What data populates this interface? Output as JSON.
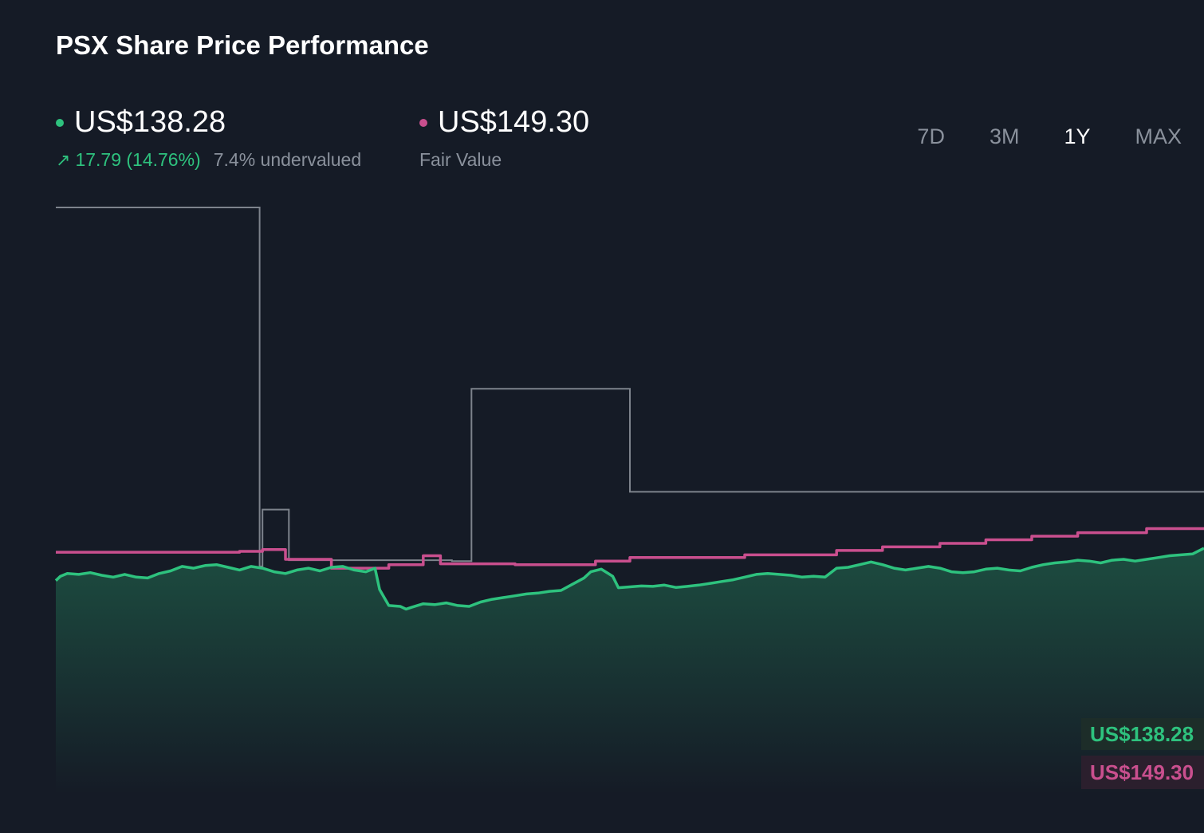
{
  "header": {
    "title": "PSX Share Price Performance"
  },
  "price": {
    "value": "US$138.28",
    "change": "17.79 (14.76%)",
    "valuation": "7.4% undervalued"
  },
  "fair_value": {
    "value": "US$149.30",
    "label": "Fair Value"
  },
  "tabs": [
    {
      "label": "7D",
      "active": false
    },
    {
      "label": "3M",
      "active": false
    },
    {
      "label": "1Y",
      "active": true
    },
    {
      "label": "MAX",
      "active": false
    }
  ],
  "colors": {
    "price": "#2ec27e",
    "fair_value": "#c94f8e",
    "history": "#7d838c",
    "background": "#151b26"
  },
  "chart_data": {
    "type": "line",
    "price_label": "US$138.28",
    "fair_value_label": "US$149.30",
    "ylim": [
      0,
      330
    ],
    "x_range": [
      0,
      100
    ],
    "series": [
      {
        "values": [
          [
            0,
            120
          ],
          [
            0.4,
            122.5
          ],
          [
            1,
            124
          ],
          [
            2,
            123.5
          ],
          [
            3,
            124.5
          ],
          [
            4,
            123
          ],
          [
            5,
            122
          ],
          [
            6,
            123.5
          ],
          [
            7,
            122
          ],
          [
            8,
            121.5
          ],
          [
            9,
            124
          ],
          [
            10,
            125.5
          ],
          [
            11,
            128
          ],
          [
            12,
            127
          ],
          [
            13,
            128.5
          ],
          [
            14,
            129
          ],
          [
            15,
            127.5
          ],
          [
            16,
            126
          ],
          [
            17,
            128
          ],
          [
            18,
            127
          ],
          [
            19,
            125
          ],
          [
            20,
            124
          ],
          [
            21,
            126
          ],
          [
            22,
            127
          ],
          [
            23,
            125.5
          ],
          [
            24,
            127.5
          ],
          [
            25,
            128
          ],
          [
            26,
            126
          ],
          [
            27,
            125
          ],
          [
            27.8,
            127
          ],
          [
            28.2,
            115
          ],
          [
            29,
            106
          ],
          [
            30,
            105.5
          ],
          [
            30.5,
            104
          ],
          [
            31,
            105
          ],
          [
            32,
            107
          ],
          [
            33,
            106.5
          ],
          [
            34,
            107.5
          ],
          [
            35,
            106
          ],
          [
            36,
            105.5
          ],
          [
            37,
            108
          ],
          [
            38,
            109.5
          ],
          [
            39,
            110.5
          ],
          [
            40,
            111.5
          ],
          [
            41,
            112.5
          ],
          [
            42,
            113
          ],
          [
            43,
            114
          ],
          [
            44,
            114.5
          ],
          [
            45,
            118
          ],
          [
            46,
            121.5
          ],
          [
            46.6,
            125
          ],
          [
            47.5,
            126.5
          ],
          [
            48.5,
            122.5
          ],
          [
            49,
            116
          ],
          [
            50,
            116.5
          ],
          [
            51,
            117
          ],
          [
            52,
            116.8
          ],
          [
            53,
            117.5
          ],
          [
            54,
            116.2
          ],
          [
            55,
            116.8
          ],
          [
            56,
            117.5
          ],
          [
            57,
            118.5
          ],
          [
            58,
            119.5
          ],
          [
            59,
            120.5
          ],
          [
            60,
            122
          ],
          [
            61,
            123.5
          ],
          [
            62,
            124
          ],
          [
            63,
            123.5
          ],
          [
            64,
            123
          ],
          [
            65,
            122
          ],
          [
            66,
            122.5
          ],
          [
            67,
            122
          ],
          [
            68,
            127
          ],
          [
            69,
            127.5
          ],
          [
            70,
            129
          ],
          [
            71,
            130.5
          ],
          [
            72,
            129
          ],
          [
            73,
            127
          ],
          [
            74,
            126
          ],
          [
            75,
            127
          ],
          [
            76,
            128
          ],
          [
            77,
            127
          ],
          [
            78,
            125
          ],
          [
            79,
            124.5
          ],
          [
            80,
            125
          ],
          [
            81,
            126.5
          ],
          [
            82,
            127
          ],
          [
            83,
            126
          ],
          [
            84,
            125.5
          ],
          [
            85,
            127.5
          ],
          [
            86,
            129
          ],
          [
            87,
            130
          ],
          [
            88,
            130.5
          ],
          [
            89,
            131.5
          ],
          [
            90,
            131
          ],
          [
            91,
            130
          ],
          [
            92,
            131.5
          ],
          [
            93,
            132
          ],
          [
            94,
            131
          ],
          [
            95,
            132
          ],
          [
            96,
            133
          ],
          [
            97,
            134
          ],
          [
            98,
            134.5
          ],
          [
            99,
            135
          ],
          [
            100,
            138.28
          ]
        ]
      },
      {
        "values": [
          [
            0,
            136
          ],
          [
            16,
            136
          ],
          [
            16,
            136.5
          ],
          [
            18,
            136.5
          ],
          [
            18,
            137.5
          ],
          [
            20,
            137.5
          ],
          [
            20,
            132
          ],
          [
            24,
            132
          ],
          [
            24,
            127
          ],
          [
            29,
            127
          ],
          [
            29,
            129
          ],
          [
            32,
            129
          ],
          [
            32,
            134
          ],
          [
            33.5,
            134
          ],
          [
            33.5,
            129.5
          ],
          [
            40,
            129.5
          ],
          [
            40,
            129
          ],
          [
            47,
            129
          ],
          [
            47,
            131
          ],
          [
            50,
            131
          ],
          [
            50,
            133
          ],
          [
            60,
            133
          ],
          [
            60,
            134.5
          ],
          [
            68,
            134.5
          ],
          [
            68,
            137
          ],
          [
            72,
            137
          ],
          [
            72,
            139
          ],
          [
            77,
            139
          ],
          [
            77,
            141
          ],
          [
            81,
            141
          ],
          [
            81,
            143
          ],
          [
            85,
            143
          ],
          [
            85,
            145
          ],
          [
            89,
            145
          ],
          [
            89,
            147
          ],
          [
            95,
            147
          ],
          [
            95,
            149.3
          ],
          [
            100,
            149.3
          ]
        ]
      },
      {
        "values": [
          [
            0,
            330
          ],
          [
            17.75,
            330
          ],
          [
            17.75,
            128
          ],
          [
            18,
            128
          ],
          [
            18,
            160
          ],
          [
            20.3,
            160
          ],
          [
            20.3,
            131.5
          ],
          [
            34.5,
            131.5
          ],
          [
            34.5,
            131
          ],
          [
            36.2,
            131
          ],
          [
            36.2,
            228
          ],
          [
            50,
            228
          ],
          [
            50,
            170
          ],
          [
            100,
            170
          ]
        ]
      }
    ]
  }
}
